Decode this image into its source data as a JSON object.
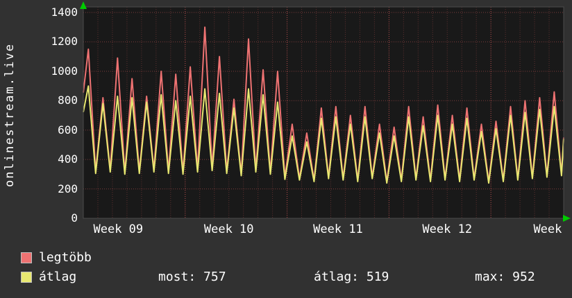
{
  "chart_data": {
    "type": "line",
    "title": "onlinestream.live",
    "ylabel": "onlinestream.live",
    "xlabel": "",
    "ylim": [
      0,
      1400
    ],
    "y_ticks": [
      1400,
      1200,
      1000,
      800,
      600,
      400,
      200,
      0
    ],
    "x_labels": [
      "Week 09",
      "Week 10",
      "Week 11",
      "Week 12",
      "Week"
    ],
    "x_label_days": [
      2.4,
      10,
      17.5,
      25,
      31.9
    ],
    "days": 33,
    "week_boundaries": [
      7,
      14,
      21,
      28
    ],
    "grid": true,
    "legend_position": "bottom-left",
    "background": "#313131",
    "plot_background": "#191919",
    "grid_color": "#cc5555",
    "arrow_color": "#00cc00",
    "text_color": "#ffffff",
    "series": [
      {
        "name": "legtöbb",
        "color": "#ee7272",
        "peaks": [
          1150,
          820,
          1090,
          950,
          830,
          1000,
          980,
          1030,
          1300,
          1100,
          810,
          1220,
          1010,
          1000,
          640,
          580,
          750,
          760,
          700,
          760,
          640,
          620,
          760,
          690,
          770,
          700,
          750,
          640,
          660,
          760,
          800,
          820,
          860
        ],
        "troughs": [
          320,
          330,
          310,
          320,
          330,
          320,
          310,
          330,
          340,
          320,
          300,
          330,
          310,
          280,
          270,
          260,
          280,
          270,
          260,
          280,
          250,
          260,
          270,
          260,
          270,
          260,
          270,
          250,
          260,
          270,
          280,
          290,
          300
        ]
      },
      {
        "name": "átlag",
        "color": "#e8e871",
        "peaks": [
          900,
          780,
          830,
          820,
          790,
          840,
          800,
          830,
          880,
          850,
          750,
          880,
          840,
          790,
          560,
          520,
          680,
          690,
          640,
          690,
          580,
          560,
          690,
          630,
          700,
          640,
          680,
          590,
          610,
          700,
          720,
          740,
          760
        ],
        "troughs": [
          305,
          315,
          300,
          305,
          315,
          305,
          300,
          315,
          325,
          305,
          290,
          315,
          300,
          265,
          260,
          250,
          270,
          260,
          250,
          270,
          240,
          250,
          260,
          250,
          260,
          250,
          260,
          240,
          250,
          260,
          270,
          280,
          290
        ]
      }
    ],
    "stats": {
      "most": 757,
      "atlag": 519,
      "max": 952
    }
  },
  "footer": {
    "most": "most: 757",
    "atlag": "átlag: 519",
    "max": "max: 952"
  }
}
